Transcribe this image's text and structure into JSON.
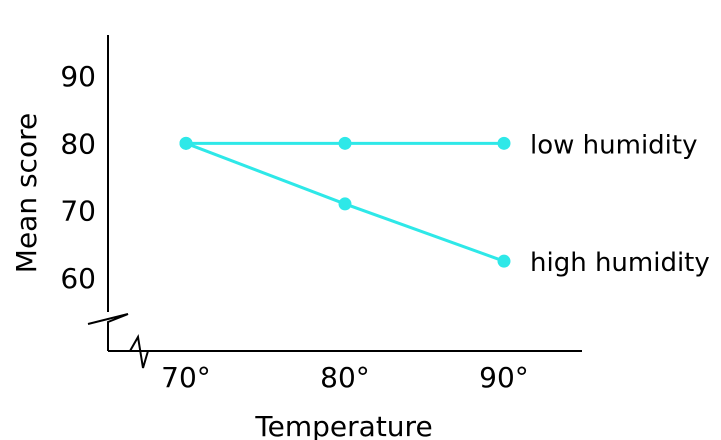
{
  "chart_data": {
    "type": "line",
    "title": "",
    "xlabel": "Temperature",
    "ylabel": "Mean score",
    "categories": [
      "70°",
      "80°",
      "90°"
    ],
    "y_ticks": [
      "60",
      "70",
      "80",
      "90"
    ],
    "ylim": [
      50,
      95
    ],
    "series": [
      {
        "name": "low humidity",
        "values": [
          80,
          80,
          80
        ]
      },
      {
        "name": "high humidity",
        "values": [
          80,
          71,
          62.5
        ]
      }
    ],
    "colors": {
      "line": "#2ee8e8",
      "axis": "#000000"
    }
  }
}
